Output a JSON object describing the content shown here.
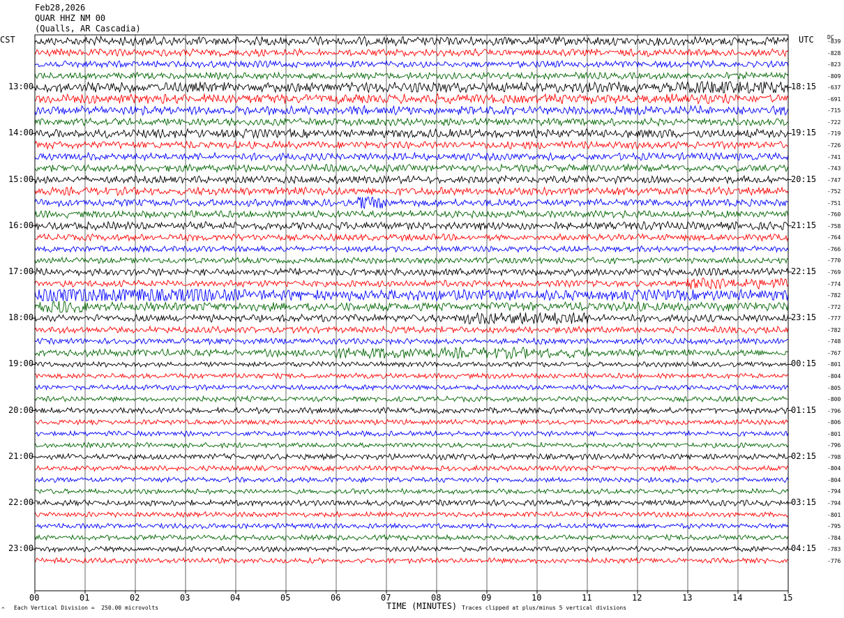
{
  "header": {
    "date": "Feb28,2026",
    "station": "QUAR HHZ NM 00",
    "location": "(Qualls, AR Cascadia)"
  },
  "left_axis_label": "CST",
  "right_axis_label": "UTC",
  "dc_label": "DC",
  "footer": {
    "x_axis_title": "TIME (MINUTES)",
    "scale_note": "Each Vertical Division =  250.00 microvolts",
    "clip_note": "Traces clipped at plus/minus 5 vertical divisions",
    "corner_mark": "^"
  },
  "colors": {
    "trace_cycle": [
      "#000000",
      "#ff0000",
      "#0000ff",
      "#006400"
    ],
    "grid": "#000000",
    "background": "#ffffff"
  },
  "chart_data": {
    "type": "helicorder",
    "x_ticks": [
      "00",
      "01",
      "02",
      "03",
      "04",
      "05",
      "06",
      "07",
      "08",
      "09",
      "10",
      "11",
      "12",
      "13",
      "14",
      "15"
    ],
    "xlim": [
      0,
      15
    ],
    "traces_per_hour": 4,
    "trace_minutes": 15,
    "hour_labels_left": [
      "13:00",
      "14:00",
      "15:00",
      "16:00",
      "17:00",
      "18:00",
      "19:00",
      "20:00",
      "21:00",
      "22:00",
      "23:00"
    ],
    "hour_labels_right": [
      "18:15",
      "19:15",
      "20:15",
      "21:15",
      "22:15",
      "23:15",
      "00:15",
      "01:15",
      "02:15",
      "03:15",
      "04:15"
    ],
    "dc_offsets": [
      -839,
      -828,
      -823,
      -809,
      -637,
      -691,
      -715,
      -722,
      -719,
      -726,
      -741,
      -743,
      -747,
      -752,
      -751,
      -760,
      -758,
      -764,
      -766,
      -770,
      -769,
      -774,
      -782,
      -772,
      -777,
      -782,
      -748,
      -767,
      -801,
      -804,
      -805,
      -800,
      -796,
      -806,
      -801,
      -796,
      -798,
      -804,
      -804,
      -794,
      -794,
      -801,
      -795,
      -784,
      -783,
      -776
    ],
    "trace_amplitude_level": [
      1.2,
      1.0,
      0.9,
      0.9,
      1.4,
      1.3,
      1.2,
      1.0,
      1.2,
      1.0,
      1.0,
      1.0,
      1.0,
      1.1,
      1.0,
      1.0,
      1.1,
      0.9,
      0.8,
      0.8,
      1.0,
      0.9,
      1.5,
      1.2,
      1.0,
      0.9,
      0.8,
      1.0,
      0.7,
      0.7,
      0.7,
      0.7,
      0.8,
      0.7,
      0.7,
      0.7,
      0.8,
      0.7,
      0.7,
      0.7,
      0.8,
      0.7,
      0.7,
      0.7,
      0.7,
      0.7
    ],
    "events": [
      {
        "trace": 14,
        "minute_start": 6.4,
        "minute_end": 7.0,
        "level": 3.0
      },
      {
        "trace": 22,
        "minute_start": 0.0,
        "minute_end": 4.0,
        "level": 2.0
      },
      {
        "trace": 23,
        "minute_start": 0.0,
        "minute_end": 1.0,
        "level": 1.8
      },
      {
        "trace": 24,
        "minute_start": 8.5,
        "minute_end": 11.0,
        "level": 2.0
      },
      {
        "trace": 27,
        "minute_start": 6.0,
        "minute_end": 11.0,
        "level": 1.6
      },
      {
        "trace": 4,
        "minute_start": 13.0,
        "minute_end": 15.0,
        "level": 1.8
      },
      {
        "trace": 21,
        "minute_start": 13.0,
        "minute_end": 15.0,
        "level": 1.8
      }
    ]
  }
}
